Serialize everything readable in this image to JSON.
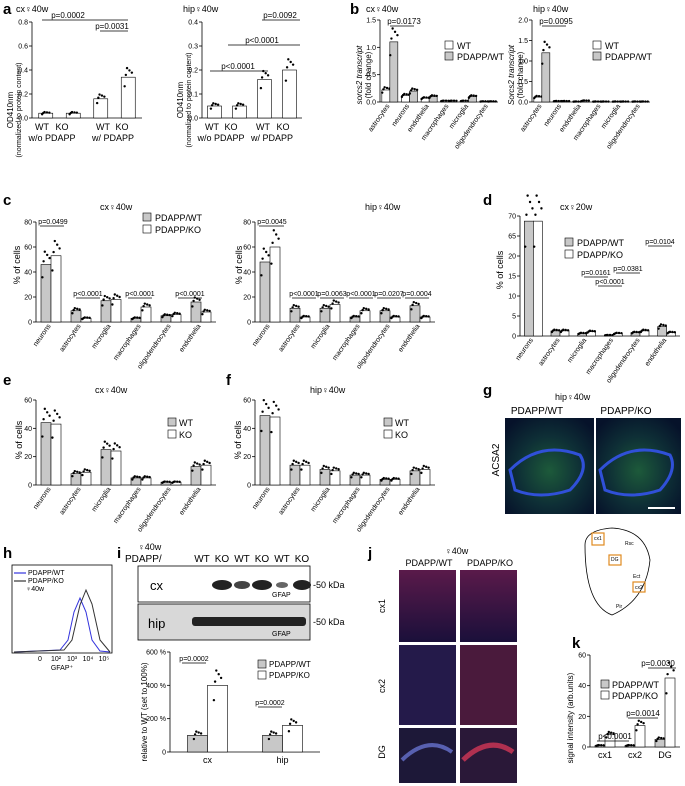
{
  "panel_labels": [
    "a",
    "b",
    "c",
    "d",
    "e",
    "f",
    "g",
    "h",
    "i",
    "j",
    "k"
  ],
  "common": {
    "pct_cells": "% of cells",
    "cells6": [
      "neurons",
      "astrocytes",
      "microglia",
      "macrophages",
      "oligodendrocytes",
      "endothelia"
    ],
    "b_cells": [
      "astrocytes",
      "neurons",
      "endothelia",
      "macrophages",
      "microglia",
      "oligodendrocytes"
    ]
  },
  "a": {
    "cx_title": "cx♀40w",
    "hip_title": "hip♀40w",
    "ylabel": "OD410nm",
    "ysub": "(normalized to protein content)",
    "wt": "WT",
    "ko": "KO",
    "wo": "w/o PDAPP",
    "w": "w/ PDAPP",
    "cx_p": [
      "p=0.0002",
      "p=0.0031"
    ],
    "hip_p": [
      "p=0.0092",
      "p<0.0001",
      "p<0.0001"
    ]
  },
  "b": {
    "cx_title": "cx♀40w",
    "hip_title": "hip♀40w",
    "cx_ylabel": "sorcs2 transcript",
    "hip_ylabel": "Sorcs2 transcript",
    "ysub": "(fold change)",
    "cx_p": "p=0.0173",
    "hip_p": "p=0.0095",
    "legend": [
      "WT",
      "PDAPP/WT"
    ]
  },
  "c": {
    "cx_title": "cx♀40w",
    "hip_title": "hip♀40w",
    "legend": [
      "PDAPP/WT",
      "PDAPP/KO"
    ],
    "cx_p": [
      "p=0.0499",
      "p<0.0001",
      "p<0.0001",
      "p<0.0001"
    ],
    "hip_p": [
      "p=0.0045",
      "p<0.0001",
      "p=0.0063",
      "p<0.0001",
      "p=0.0207",
      "p=0.0004"
    ]
  },
  "d": {
    "title": "cx♀20w",
    "legend": [
      "PDAPP/WT",
      "PDAPP/KO"
    ],
    "p": [
      "p=0.0161",
      "p<0.0001",
      "p=0.0381",
      "p=0.0104"
    ]
  },
  "e": {
    "title": "cx♀40w",
    "legend": [
      "WT",
      "KO"
    ]
  },
  "f": {
    "title": "hip♀40w",
    "legend": [
      "WT",
      "KO"
    ]
  },
  "g": {
    "title": "hip♀40w",
    "cols": [
      "PDAPP/WT",
      "PDAPP/KO"
    ],
    "ylabel": "ACSA2"
  },
  "h": {
    "legend": [
      "PDAPP/WT",
      "PDAPP/KO"
    ],
    "age": "♀40w",
    "xlabel": "GFAP⁺",
    "ticks": [
      "0",
      "10²",
      "10³",
      "10⁴",
      "10⁵"
    ]
  },
  "i": {
    "age": "♀40w",
    "lane_prefix": "PDAPP/",
    "lanes": [
      "WT",
      "KO",
      "WT",
      "KO",
      "WT",
      "KO"
    ],
    "rows": [
      "cx",
      "hip"
    ],
    "marker": "GFAP",
    "kda": "-50 kDa",
    "ylabel": "relative to WT (set to 100%)",
    "legend": [
      "PDAPP/WT",
      "PDAPP/KO"
    ],
    "p": [
      "p=0.0002",
      "p=0.0002"
    ],
    "ticks": [
      "0",
      "200 %",
      "400 %",
      "600 %"
    ],
    "groups": [
      "cx",
      "hip"
    ]
  },
  "j": {
    "title": "♀40w",
    "cols": [
      "PDAPP/WT",
      "PDAPP/KO"
    ],
    "rows": [
      "cx1",
      "cx2",
      "DG"
    ],
    "atlas": [
      "cx1",
      "cx2",
      "DG",
      "Rsc",
      "Ect",
      "Pir"
    ]
  },
  "k": {
    "ylabel": "signal intensity (arb.units)",
    "legend": [
      "PDAPP/WT",
      "PDAPP/KO"
    ],
    "p": [
      "p<0.0001",
      "p=0.0014",
      "p=0.0030"
    ],
    "categories": [
      "cx1",
      "cx2",
      "DG"
    ],
    "ticks": [
      "0",
      "20",
      "40",
      "60"
    ]
  },
  "chart_data": [
    {
      "panel": "c-cx",
      "type": "bar",
      "categories": [
        "neurons",
        "astrocytes",
        "microglia",
        "macrophages",
        "oligodendrocytes",
        "endothelia"
      ],
      "ylim": [
        0,
        80
      ],
      "yticks": [
        "0",
        "20",
        "40",
        "60",
        "80"
      ],
      "series": [
        {
          "name": "PDAPP/WT",
          "values": [
            46,
            9,
            17,
            3,
            5,
            16
          ]
        },
        {
          "name": "PDAPP/KO",
          "values": [
            53,
            3,
            18,
            12,
            6,
            8
          ]
        }
      ]
    },
    {
      "panel": "c-hip",
      "type": "bar",
      "categories": [
        "neurons",
        "astrocytes",
        "microglia",
        "macrophages",
        "oligodendrocytes",
        "endothelia"
      ],
      "ylim": [
        0,
        80
      ],
      "yticks": [
        "0",
        "20",
        "40",
        "60",
        "80"
      ],
      "series": [
        {
          "name": "PDAPP/WT",
          "values": [
            48,
            11,
            11,
            4,
            9,
            13
          ]
        },
        {
          "name": "PDAPP/KO",
          "values": [
            60,
            4,
            14,
            9,
            4,
            4
          ]
        }
      ]
    },
    {
      "panel": "d",
      "type": "bar",
      "categories": [
        "neurons",
        "astrocytes",
        "microglia",
        "macrophages",
        "oligodendrocytes",
        "endothelia"
      ],
      "ylim": [
        0,
        70
      ],
      "yticks": [
        "0",
        "5",
        "10",
        "15",
        "20",
        "65",
        "70"
      ],
      "series": [
        {
          "name": "PDAPP/WT",
          "values": [
            67,
            3,
            1.5,
            0.5,
            2,
            5.5
          ]
        },
        {
          "name": "PDAPP/KO",
          "values": [
            67,
            3,
            2.5,
            1.5,
            3,
            2
          ]
        }
      ]
    },
    {
      "panel": "e",
      "type": "bar",
      "categories": [
        "neurons",
        "astrocytes",
        "microglia",
        "macrophages",
        "oligodendrocytes",
        "endothelia"
      ],
      "ylim": [
        0,
        60
      ],
      "yticks": [
        "0",
        "20",
        "40",
        "60"
      ],
      "series": [
        {
          "name": "WT",
          "values": [
            44,
            8,
            25,
            5,
            2,
            13
          ]
        },
        {
          "name": "KO",
          "values": [
            43,
            9,
            24,
            5,
            2,
            14
          ]
        }
      ]
    },
    {
      "panel": "f",
      "type": "bar",
      "categories": [
        "neurons",
        "astrocytes",
        "microglia",
        "macrophages",
        "oligodendrocytes",
        "endothelia"
      ],
      "ylim": [
        0,
        60
      ],
      "yticks": [
        "0",
        "20",
        "40",
        "60"
      ],
      "series": [
        {
          "name": "WT",
          "values": [
            49,
            14,
            11,
            7,
            4,
            10
          ]
        },
        {
          "name": "KO",
          "values": [
            48,
            14,
            10,
            7,
            4,
            11
          ]
        }
      ]
    },
    {
      "panel": "b-cx",
      "type": "bar",
      "categories": [
        "astrocytes",
        "neurons",
        "endothelia",
        "macrophages",
        "microglia",
        "oligodendrocytes"
      ],
      "ylim": [
        0,
        1.5
      ],
      "yticks": [
        "0.0",
        "0.5",
        "1.0",
        "1.5"
      ],
      "series": [
        {
          "name": "WT",
          "values": [
            0.22,
            0.12,
            0.07,
            0.02,
            0.02,
            0.01
          ]
        },
        {
          "name": "PDAPP/WT",
          "values": [
            1.1,
            0.2,
            0.1,
            0.02,
            0.1,
            0.01
          ]
        }
      ]
    },
    {
      "panel": "b-hip",
      "type": "bar",
      "categories": [
        "astrocytes",
        "neurons",
        "endothelia",
        "macrophages",
        "microglia",
        "oligodendrocytes"
      ],
      "ylim": [
        0,
        2.0
      ],
      "yticks": [
        "0.0",
        "0.5",
        "1.0",
        "1.5",
        "2.0"
      ],
      "series": [
        {
          "name": "WT",
          "values": [
            0.12,
            0.02,
            0.01,
            0.01,
            0.01,
            0.01
          ]
        },
        {
          "name": "PDAPP/WT",
          "values": [
            1.2,
            0.02,
            0.03,
            0.01,
            0.01,
            0.01
          ]
        }
      ]
    },
    {
      "panel": "a-cx",
      "type": "bar",
      "categories": [
        "WT w/o PDAPP",
        "KO w/o PDAPP",
        "WT w/ PDAPP",
        "KO w/ PDAPP"
      ],
      "ylim": [
        0,
        0.8
      ],
      "yticks": [
        "0.0",
        "0.2",
        "0.4",
        "0.6",
        "0.8"
      ],
      "values": [
        0.04,
        0.04,
        0.16,
        0.34
      ]
    },
    {
      "panel": "a-hip",
      "type": "bar",
      "categories": [
        "WT w/o PDAPP",
        "KO w/o PDAPP",
        "WT w/ PDAPP",
        "KO w/ PDAPP"
      ],
      "ylim": [
        0,
        0.4
      ],
      "yticks": [
        "0.0",
        "0.1",
        "0.2",
        "0.3",
        "0.4"
      ],
      "values": [
        0.05,
        0.05,
        0.16,
        0.2
      ]
    },
    {
      "panel": "i",
      "type": "bar",
      "categories": [
        "cx",
        "hip"
      ],
      "ylim": [
        0,
        600
      ],
      "yticks": [
        "0",
        "200 %",
        "400 %",
        "600 %"
      ],
      "series": [
        {
          "name": "PDAPP/WT",
          "values": [
            100,
            100
          ]
        },
        {
          "name": "PDAPP/KO",
          "values": [
            400,
            160
          ]
        }
      ]
    },
    {
      "panel": "k",
      "type": "bar",
      "categories": [
        "cx1",
        "cx2",
        "DG"
      ],
      "ylim": [
        0,
        60
      ],
      "yticks": [
        "0",
        "20",
        "40",
        "60"
      ],
      "series": [
        {
          "name": "PDAPP/WT",
          "values": [
            1,
            1,
            5
          ]
        },
        {
          "name": "PDAPP/KO",
          "values": [
            8,
            14,
            45
          ]
        }
      ]
    }
  ]
}
